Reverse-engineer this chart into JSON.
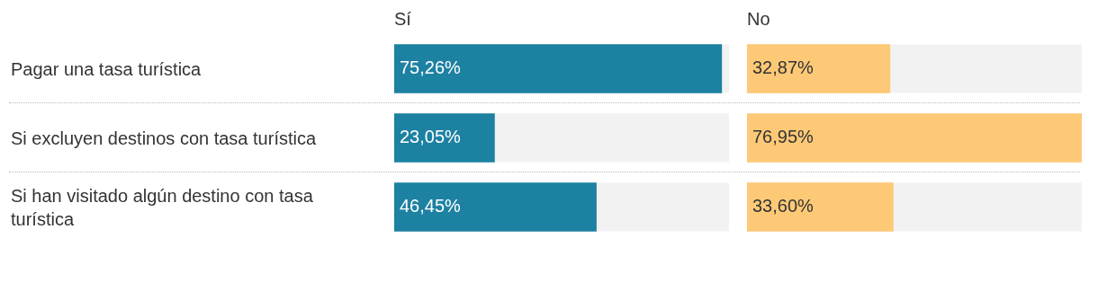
{
  "chart_data": [
    {
      "type": "bar",
      "orientation": "horizontal",
      "title": "Sí",
      "tick_labels": "y",
      "categories": [
        "Pagar una tasa turística",
        "Si excluyen destinos con tasa turística",
        "Si han visitado algún destino con tasa turística"
      ],
      "series": [
        {
          "color": "#1d81a2",
          "values": [
            75.26,
            23.05,
            46.45
          ],
          "value_labels": [
            "75,26%",
            "23,05%",
            "46,45%"
          ]
        }
      ]
    },
    {
      "type": "bar",
      "orientation": "horizontal",
      "title": "No",
      "tick_labels": false,
      "categories": [
        null,
        null,
        null
      ],
      "series": [
        {
          "color": "#fec977",
          "values": [
            32.87,
            76.95,
            33.6
          ],
          "value_labels": [
            "32,87%",
            "76,95%",
            "33,60%"
          ]
        }
      ]
    }
  ]
}
